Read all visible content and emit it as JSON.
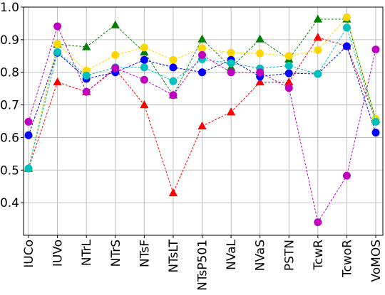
{
  "chart_data": {
    "type": "line",
    "title": "",
    "xlabel": "",
    "ylabel": "",
    "categories": [
      "IUCo",
      "IUVo",
      "NTrL",
      "NTrS",
      "NTsF",
      "NTsLT",
      "NTsP501",
      "NVaL",
      "NVaS",
      "PSTN",
      "TcwR",
      "TcwoR",
      "VoMOS"
    ],
    "ylim": [
      0.3,
      1.0
    ],
    "yticks": [
      0.4,
      0.5,
      0.6,
      0.7,
      0.8,
      0.9,
      1.0
    ],
    "ytick_labels": [
      "0.4",
      "0.5",
      "0.6",
      "0.7",
      "0.8",
      "0.9",
      "1.0"
    ],
    "grid": true,
    "legend": "none",
    "series": [
      {
        "color": "#ff0000",
        "marker": "triangle",
        "values": [
          0.505,
          0.77,
          0.74,
          0.81,
          0.7,
          0.43,
          0.635,
          0.678,
          0.77,
          0.77,
          0.907,
          0.88,
          0.655
        ]
      },
      {
        "color": "#008000",
        "marker": "triangle",
        "values": [
          0.505,
          0.886,
          0.878,
          0.945,
          0.862,
          0.73,
          0.902,
          0.815,
          0.902,
          0.84,
          0.963,
          0.963,
          0.655
        ]
      },
      {
        "color": "#ffd700",
        "marker": "circle",
        "values": [
          0.505,
          0.887,
          0.805,
          0.853,
          0.876,
          0.838,
          0.874,
          0.86,
          0.858,
          0.85,
          0.868,
          0.969,
          0.657
        ]
      },
      {
        "color": "#0000ff",
        "marker": "circle",
        "values": [
          0.607,
          0.86,
          0.78,
          0.8,
          0.838,
          0.815,
          0.8,
          0.838,
          0.787,
          0.797,
          0.795,
          0.88,
          0.615
        ]
      },
      {
        "color": "#00bfbf",
        "marker": "circle",
        "values": [
          0.505,
          0.862,
          0.79,
          0.815,
          0.815,
          0.773,
          0.84,
          0.828,
          0.812,
          0.82,
          0.795,
          0.937,
          0.648
        ]
      },
      {
        "color": "#bf00bf",
        "marker": "circle",
        "values": [
          0.648,
          0.941,
          0.74,
          0.813,
          0.777,
          0.73,
          0.853,
          0.8,
          0.8,
          0.752,
          0.34,
          0.483,
          0.87
        ]
      }
    ]
  }
}
